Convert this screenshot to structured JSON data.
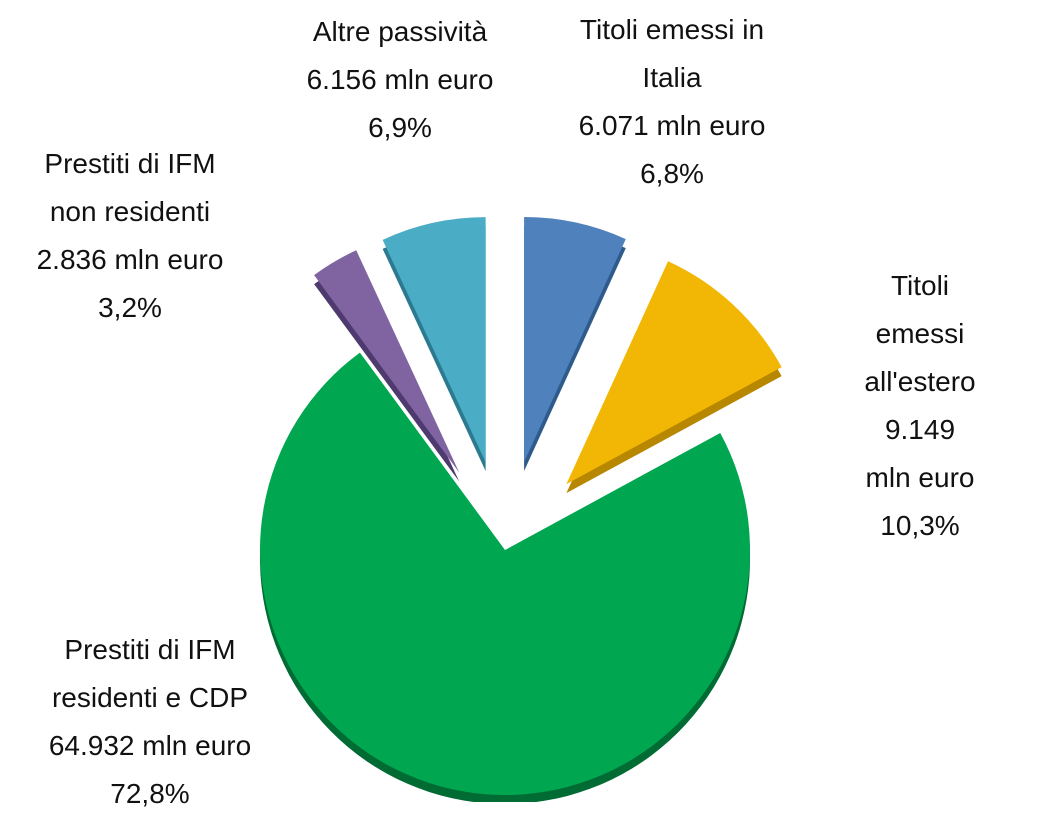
{
  "chart_data": {
    "type": "pie",
    "categories": [
      "Titoli emessi in\nItalia",
      "Titoli emessi\nall'estero",
      "Prestiti di IFM\nresidenti e CDP",
      "Prestiti di IFM\nnon residenti",
      "Altre passività"
    ],
    "values": [
      6071,
      9149,
      64932,
      2836,
      6156
    ],
    "value_labels": [
      "6.071 mln euro",
      "9.149 mln euro",
      "64.932 mln euro",
      "2.836 mln euro",
      "6.156 mln euro"
    ],
    "percent_labels": [
      "6,8%",
      "10,3%",
      "72,8%",
      "3,2%",
      "6,9%"
    ],
    "colors": [
      "#4f81bd",
      "#f2b705",
      "#00a650",
      "#8064a2",
      "#4bacc6"
    ],
    "side_colors": [
      "#2f5a8c",
      "#b88700",
      "#006b33",
      "#4e3a6e",
      "#2b7a90"
    ]
  }
}
